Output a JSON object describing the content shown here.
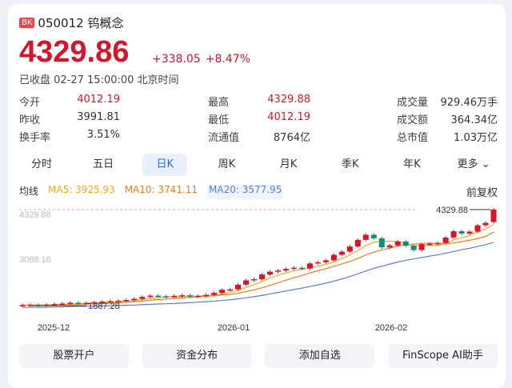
{
  "header": {
    "badge": "BK",
    "code": "050012",
    "name": "钨概念"
  },
  "quote": {
    "price": "4329.86",
    "change": "+338.05",
    "change_pct": "+8.47%",
    "status": "已收盘 02-27 15:00:00 北京时间"
  },
  "stats": [
    {
      "label": "今开",
      "value": "4012.19",
      "color": "red"
    },
    {
      "label": "最高",
      "value": "4329.88",
      "color": "red"
    },
    {
      "label": "成交量",
      "value": "929.46万手",
      "color": "normal"
    },
    {
      "label": "昨收",
      "value": "3991.81",
      "color": "normal"
    },
    {
      "label": "最低",
      "value": "4012.19",
      "color": "red"
    },
    {
      "label": "成交额",
      "value": "364.34亿",
      "color": "normal"
    },
    {
      "label": "换手率",
      "value": "3.51%",
      "color": "normal"
    },
    {
      "label": "流通值",
      "value": "8764亿",
      "color": "normal"
    },
    {
      "label": "总市值",
      "value": "1.03万亿",
      "color": "normal"
    }
  ],
  "tabs": [
    "分时",
    "五日",
    "日K",
    "周K",
    "月K",
    "季K",
    "年K",
    "更多"
  ],
  "active_tab": "日K",
  "ma": {
    "label": "均线",
    "ma5": "MA5: 3925.93",
    "ma10": "MA10: 3741.11",
    "ma20": "MA20: 3577.95",
    "adjust": "前复权"
  },
  "colors": {
    "up": "#d7152a",
    "down": "#128a75",
    "ma5": "#f5a623",
    "ma10": "#f07b1d",
    "ma20": "#5b7fd6"
  },
  "chart_data": {
    "type": "candlestick",
    "y_top_label": "4329.88",
    "y_mid_label": "3088.16",
    "high_marker": "4329.88",
    "low_marker": "1887.28",
    "x_ticks": [
      "2025-12",
      "2026-01",
      "2026-02"
    ],
    "ylim": [
      1887.28,
      4329.88
    ],
    "closes": [
      1900,
      1905,
      1898,
      1910,
      1925,
      1940,
      1960,
      1950,
      1955,
      1975,
      1990,
      2000,
      2010,
      2030,
      2060,
      2110,
      2140,
      2125,
      2100,
      2135,
      2150,
      2120,
      2135,
      2160,
      2210,
      2290,
      2300,
      2420,
      2530,
      2560,
      2680,
      2750,
      2780,
      2820,
      2850,
      2830,
      2960,
      2990,
      3040,
      3180,
      3260,
      3390,
      3560,
      3690,
      3600,
      3370,
      3420,
      3520,
      3410,
      3300,
      3450,
      3460,
      3480,
      3620,
      3780,
      3720,
      3770,
      3930,
      3991.81,
      4329.86
    ]
  },
  "actions": [
    "股票开户",
    "资金分布",
    "添加自选",
    "FinScope AI助手"
  ]
}
